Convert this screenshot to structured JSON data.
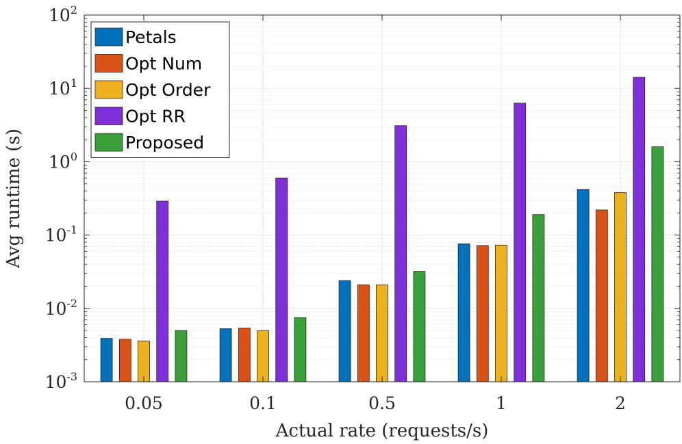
{
  "chart_data": {
    "type": "bar",
    "title": "",
    "xlabel": "Actual rate (requests/s)",
    "ylabel": "Avg runtime (s)",
    "yscale": "log",
    "ylim": [
      0.001,
      100
    ],
    "categories": [
      "0.05",
      "0.1",
      "0.5",
      "1",
      "2"
    ],
    "yticks": [
      {
        "base": "10",
        "exp": "-3"
      },
      {
        "base": "10",
        "exp": "-2"
      },
      {
        "base": "10",
        "exp": "-1"
      },
      {
        "base": "10",
        "exp": "0"
      },
      {
        "base": "10",
        "exp": "1"
      },
      {
        "base": "10",
        "exp": "2"
      }
    ],
    "grid": true,
    "legend_position": "top-left",
    "series": [
      {
        "name": "Petals",
        "color": "#0072BD",
        "values": [
          0.0039,
          0.0053,
          0.024,
          0.076,
          0.42
        ]
      },
      {
        "name": "Opt Num",
        "color": "#D95319",
        "values": [
          0.0038,
          0.0054,
          0.021,
          0.072,
          0.22
        ]
      },
      {
        "name": "Opt Order",
        "color": "#EDB120",
        "values": [
          0.0036,
          0.005,
          0.021,
          0.073,
          0.38
        ]
      },
      {
        "name": "Opt RR",
        "color": "#7E2FD8",
        "values": [
          0.29,
          0.6,
          3.1,
          6.3,
          14.2
        ]
      },
      {
        "name": "Proposed",
        "color": "#3AA03A",
        "values": [
          0.005,
          0.0075,
          0.032,
          0.19,
          1.6
        ]
      }
    ]
  }
}
